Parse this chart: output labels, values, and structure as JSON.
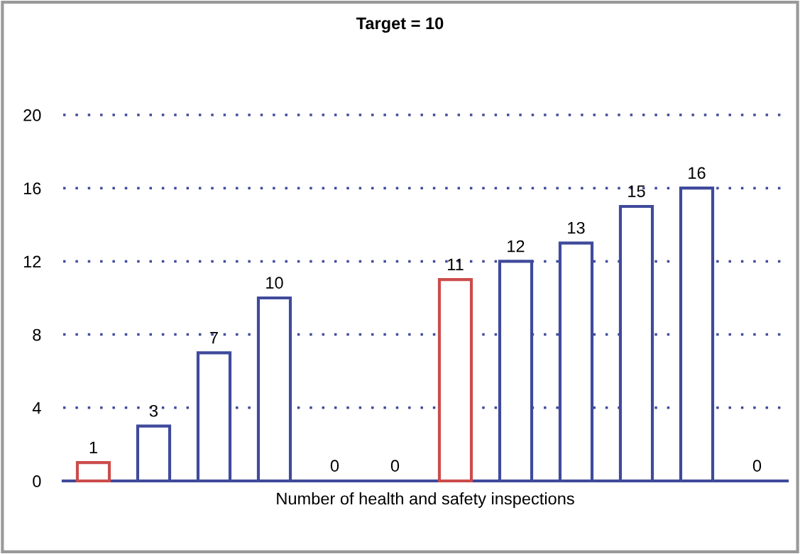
{
  "chart_data": {
    "type": "bar",
    "title": "Target = 10",
    "xlabel": "Number of health and safety inspections",
    "categories": [
      null,
      null,
      null,
      null,
      null,
      null,
      null,
      null,
      null,
      null,
      null,
      null
    ],
    "values": [
      1,
      3,
      7,
      10,
      0,
      0,
      11,
      12,
      13,
      15,
      16,
      0
    ],
    "colors": [
      "#cc4c4c",
      "#3f4a9c",
      "#3f4a9c",
      "#3f4a9c",
      "#3f4a9c",
      "#3f4a9c",
      "#cc4c4c",
      "#3f4a9c",
      "#3f4a9c",
      "#3f4a9c",
      "#3f4a9c",
      "#3f4a9c"
    ],
    "ylim": [
      0,
      20
    ],
    "yticks": [
      0,
      4,
      8,
      12,
      16,
      20
    ],
    "grid": "y",
    "data_labels": true
  }
}
